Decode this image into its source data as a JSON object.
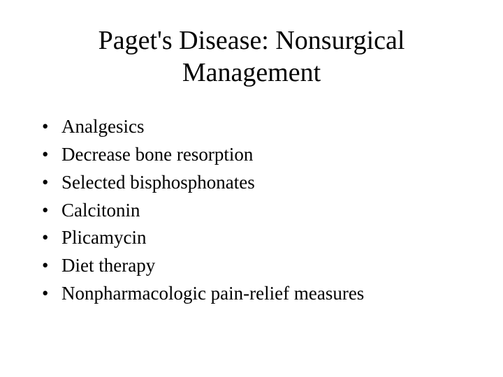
{
  "slide": {
    "title": "Paget's Disease: Nonsurgical Management",
    "title_fontsize": 38,
    "title_align": "center",
    "body_fontsize": 27,
    "font_family": "Times New Roman",
    "text_color": "#000000",
    "background_color": "#ffffff",
    "bullet_char": "•",
    "bullets": [
      "Analgesics",
      "Decrease bone resorption",
      "Selected bisphosphonates",
      "Calcitonin",
      "Plicamycin",
      "Diet therapy",
      "Nonpharmacologic pain-relief measures"
    ]
  }
}
